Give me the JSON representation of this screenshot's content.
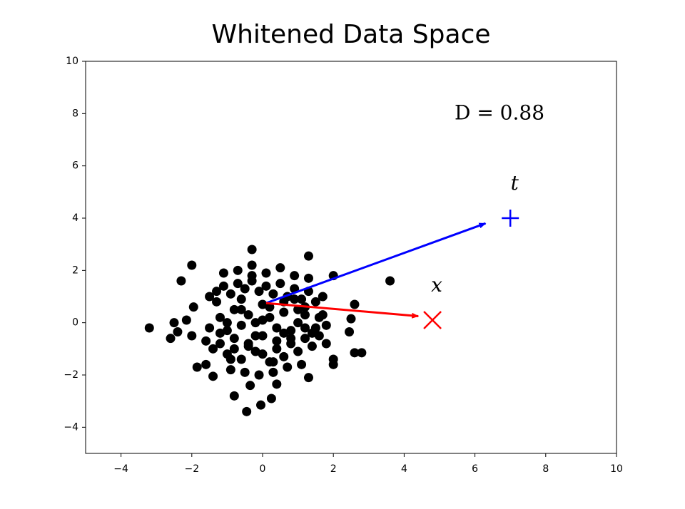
{
  "chart_data": {
    "type": "scatter",
    "title": "Whitened Data Space",
    "xlim": [
      -5,
      10
    ],
    "ylim": [
      -5,
      10
    ],
    "xticks": [
      {
        "value": -4,
        "label": "−4"
      },
      {
        "value": -2,
        "label": "−2"
      },
      0,
      2,
      4,
      6,
      8,
      10
    ],
    "yticks": [
      {
        "value": -4,
        "label": "−4"
      },
      {
        "value": -2,
        "label": "−2"
      },
      0,
      2,
      4,
      6,
      8,
      10
    ],
    "series": [
      {
        "color": "#000000",
        "x": [
          -3.2,
          -2.6,
          -2.5,
          -2.3,
          -2.0,
          3.6,
          2.8,
          2.6,
          2.6,
          2.0,
          2.45,
          2.5,
          -0.45,
          -0.05,
          0.25,
          -0.8,
          -0.3,
          1.3,
          -1.85,
          -1.6,
          -1.4,
          1.3,
          2.0,
          2.0,
          0.4,
          -0.35,
          -2.15,
          -2.4,
          -2.0,
          -1.95,
          -1.2,
          -1.0,
          -0.8,
          -0.6,
          -0.4,
          -0.2,
          0.0,
          0.2,
          0.4,
          0.6,
          0.8,
          1.0,
          1.2,
          1.4,
          1.6,
          1.8,
          -1.5,
          -1.3,
          -1.1,
          -0.9,
          -0.7,
          -0.5,
          -0.3,
          -0.1,
          0.1,
          0.3,
          0.5,
          0.7,
          0.9,
          1.1,
          1.3,
          1.5,
          1.7,
          -1.4,
          -1.0,
          -0.6,
          -0.2,
          0.2,
          0.6,
          1.0,
          1.4,
          1.8,
          -1.6,
          -1.2,
          -0.8,
          -0.4,
          0.0,
          0.4,
          0.8,
          1.2,
          1.6,
          -1.1,
          -0.7,
          -0.3,
          0.1,
          0.5,
          0.9,
          1.3,
          -0.9,
          -0.5,
          -0.1,
          0.3,
          0.7,
          1.1,
          -1.3,
          -0.6,
          0.0,
          0.6,
          1.2,
          1.7,
          -1.2,
          -0.8,
          -0.4,
          0.0,
          0.4,
          0.8,
          1.2,
          -0.2,
          0.2,
          0.6,
          -0.6,
          1.0,
          -1.0,
          1.5,
          -1.5,
          0.9,
          -0.9,
          0.3,
          -0.3
        ],
        "y": [
          -0.2,
          -0.6,
          0.0,
          1.6,
          2.2,
          1.6,
          -1.15,
          -1.15,
          0.7,
          1.8,
          -0.35,
          0.15,
          -3.4,
          -3.15,
          -2.9,
          -2.8,
          2.8,
          2.55,
          -1.7,
          -1.6,
          -2.05,
          -2.1,
          -1.6,
          -1.4,
          -2.35,
          -2.4,
          0.1,
          -0.35,
          -0.5,
          0.6,
          0.2,
          -0.3,
          0.5,
          -0.1,
          0.3,
          -0.5,
          0.1,
          0.6,
          -0.2,
          0.4,
          -0.6,
          0.0,
          0.3,
          -0.4,
          0.2,
          -0.1,
          1.0,
          1.2,
          1.4,
          1.1,
          1.5,
          1.3,
          1.6,
          1.2,
          1.4,
          1.1,
          1.5,
          1.0,
          1.3,
          0.9,
          1.2,
          0.8,
          1.0,
          -1.0,
          -1.2,
          -1.4,
          -1.1,
          -1.5,
          -1.3,
          -1.1,
          -0.9,
          -0.8,
          -0.7,
          -0.8,
          -1.0,
          -0.9,
          -1.2,
          -1.0,
          -0.8,
          -0.6,
          -0.5,
          1.9,
          2.0,
          2.2,
          1.9,
          2.1,
          1.8,
          1.7,
          -1.8,
          -1.9,
          -2.0,
          -1.9,
          -1.7,
          -1.6,
          0.8,
          0.9,
          0.7,
          0.8,
          0.6,
          0.3,
          -0.4,
          -0.6,
          -0.8,
          -0.5,
          -0.7,
          -0.3,
          -0.2,
          0.0,
          0.2,
          -0.4,
          0.5,
          0.5,
          0.0,
          -0.2,
          -0.2,
          0.9,
          -1.4,
          -1.5,
          1.8
        ]
      }
    ],
    "arrows": [
      {
        "color": "#0000ff",
        "from": [
          0.1,
          0.75
        ],
        "to": [
          6.3,
          3.8
        ]
      },
      {
        "color": "#ff0000",
        "from": [
          0.1,
          0.75
        ],
        "to": [
          4.4,
          0.25
        ]
      }
    ],
    "markers": [
      {
        "label": "t",
        "x": 7,
        "y": 4,
        "color": "#0000ff",
        "marker": "+"
      },
      {
        "label": "x",
        "x": 4.8,
        "y": 0.1,
        "color": "#ff0000",
        "marker": "x"
      }
    ],
    "annotation": "D = 0.88"
  }
}
